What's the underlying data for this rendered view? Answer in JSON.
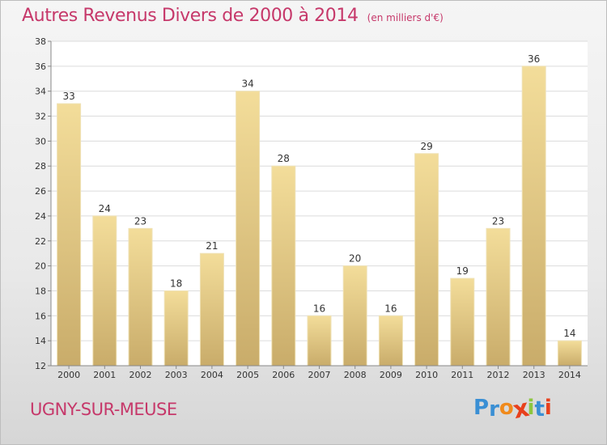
{
  "header": {
    "title": "Autres Revenus Divers de 2000 à 2014",
    "subtitle": "(en milliers d'€)"
  },
  "footer": {
    "location": "UGNY-SUR-MEUSE",
    "logo_text": "Proxiti",
    "logo_letters": [
      "P",
      "r",
      "o",
      "x",
      "i",
      "t",
      "i"
    ],
    "logo_colors": [
      "#3a8fd4",
      "#3a8fd4",
      "#f08a1c",
      "#e8401c",
      "#8cc63e",
      "#3a8fd4",
      "#e8401c"
    ]
  },
  "chart_data": {
    "type": "bar",
    "categories": [
      "2000",
      "2001",
      "2002",
      "2003",
      "2004",
      "2005",
      "2006",
      "2007",
      "2008",
      "2009",
      "2010",
      "2011",
      "2012",
      "2013",
      "2014"
    ],
    "values": [
      33,
      24,
      23,
      18,
      21,
      34,
      28,
      16,
      20,
      16,
      29,
      19,
      23,
      36,
      14
    ],
    "ylim": [
      12,
      38
    ],
    "yticks": [
      12,
      14,
      16,
      18,
      20,
      22,
      24,
      26,
      28,
      30,
      32,
      34,
      36,
      38
    ],
    "grid": true,
    "bar_color_top": "#f3dd9a",
    "bar_color_bottom": "#c9ac6a"
  }
}
